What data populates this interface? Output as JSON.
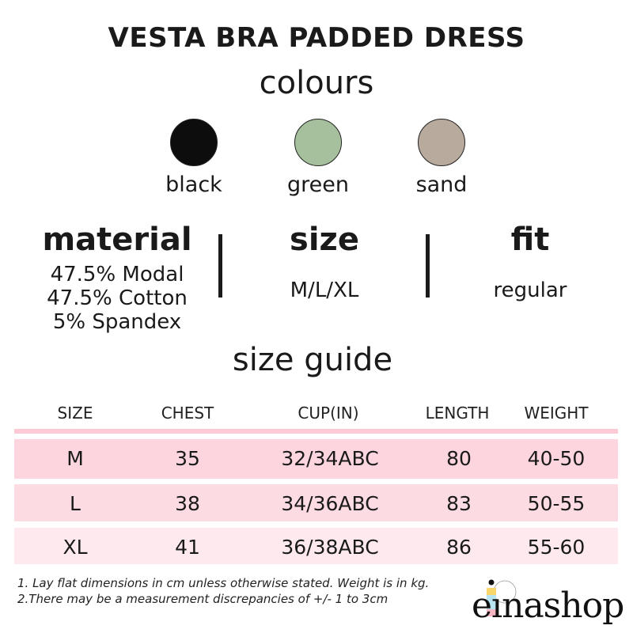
{
  "title": "VESTA BRA PADDED DRESS",
  "colours_heading": "colours",
  "colours": [
    {
      "label": "black",
      "hex": "#0d0d0d"
    },
    {
      "label": "green",
      "hex": "#a6bf9c"
    },
    {
      "label": "sand",
      "hex": "#b8aa9d"
    }
  ],
  "material": {
    "heading": "material",
    "lines": [
      "47.5% Modal",
      "47.5% Cotton",
      "5% Spandex"
    ]
  },
  "size": {
    "heading": "size",
    "value": "M/L/XL"
  },
  "fit": {
    "heading": "fit",
    "value": "regular"
  },
  "size_guide": {
    "heading": "size guide",
    "columns": [
      "SIZE",
      "CHEST",
      "CUP(IN)",
      "LENGTH",
      "WEIGHT"
    ],
    "rows": [
      [
        "M",
        "35",
        "32/34ABC",
        "80",
        "40-50"
      ],
      [
        "L",
        "38",
        "34/36ABC",
        "83",
        "50-55"
      ],
      [
        "XL",
        "41",
        "36/38ABC",
        "86",
        "55-60"
      ]
    ],
    "row_colors": [
      "#fcd5de",
      "#fddbe3",
      "#fde9ee"
    ],
    "accent": "#fcc9d5"
  },
  "notes": [
    "1. Lay flat dimensions in cm unless otherwise stated. Weight is in kg.",
    "2.There may be a measurement discrepancies of +/- 1 to 3cm"
  ],
  "logo": "einashop"
}
